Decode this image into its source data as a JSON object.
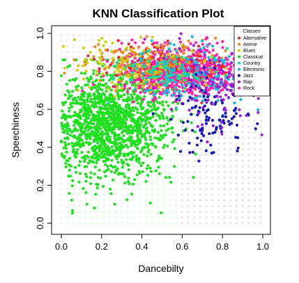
{
  "chart_data": {
    "type": "scatter",
    "title": "KNN Classification Plot",
    "xlabel": "Dancebilty",
    "ylabel": "Speechiness",
    "xlim": [
      0.0,
      1.0
    ],
    "ylim": [
      0.0,
      1.0
    ],
    "xticks": [
      "0.0",
      "0.2",
      "0.4",
      "0.6",
      "0.8",
      "1.0"
    ],
    "yticks": [
      "0.0",
      "0.2",
      "0.4",
      "0.6",
      "0.8",
      "1.0"
    ],
    "grid": false,
    "legend": {
      "title": "Classes",
      "placement": "top-right",
      "entries": [
        {
          "name": "Alternative",
          "color": "#e3262b"
        },
        {
          "name": "Anime",
          "color": "#f08a1c"
        },
        {
          "name": "Blues",
          "color": "#c8d40a"
        },
        {
          "name": "Classical",
          "color": "#1fe01f"
        },
        {
          "name": "Country",
          "color": "#14d9a2"
        },
        {
          "name": "Electronic",
          "color": "#15b8e8"
        },
        {
          "name": "Jazz",
          "color": "#1616b8"
        },
        {
          "name": "Rap",
          "color": "#9b1ed8"
        },
        {
          "name": "Rock",
          "color": "#ff22aa"
        }
      ]
    },
    "series": [
      {
        "name": "Classical",
        "color": "#1fe01f",
        "center": [
          0.22,
          0.52
        ],
        "spread": [
          0.16,
          0.14
        ],
        "n": 1500
      },
      {
        "name": "Rock",
        "color": "#ff22aa",
        "center": [
          0.58,
          0.8
        ],
        "spread": [
          0.14,
          0.06
        ],
        "n": 900
      },
      {
        "name": "Alternative",
        "color": "#e3262b",
        "center": [
          0.52,
          0.82
        ],
        "spread": [
          0.16,
          0.06
        ],
        "n": 120
      },
      {
        "name": "Anime",
        "color": "#f08a1c",
        "center": [
          0.48,
          0.84
        ],
        "spread": [
          0.18,
          0.06
        ],
        "n": 160
      },
      {
        "name": "Blues",
        "color": "#c8d40a",
        "center": [
          0.4,
          0.82
        ],
        "spread": [
          0.18,
          0.07
        ],
        "n": 140
      },
      {
        "name": "Country",
        "color": "#14d9a2",
        "center": [
          0.55,
          0.8
        ],
        "spread": [
          0.14,
          0.06
        ],
        "n": 120
      },
      {
        "name": "Electronic",
        "color": "#15b8e8",
        "center": [
          0.7,
          0.78
        ],
        "spread": [
          0.14,
          0.08
        ],
        "n": 140
      },
      {
        "name": "Jazz",
        "color": "#1616b8",
        "center": [
          0.74,
          0.56
        ],
        "spread": [
          0.1,
          0.1
        ],
        "n": 110
      },
      {
        "name": "Rap",
        "color": "#9b1ed8",
        "center": [
          0.74,
          0.72
        ],
        "spread": [
          0.12,
          0.1
        ],
        "n": 110
      }
    ]
  }
}
